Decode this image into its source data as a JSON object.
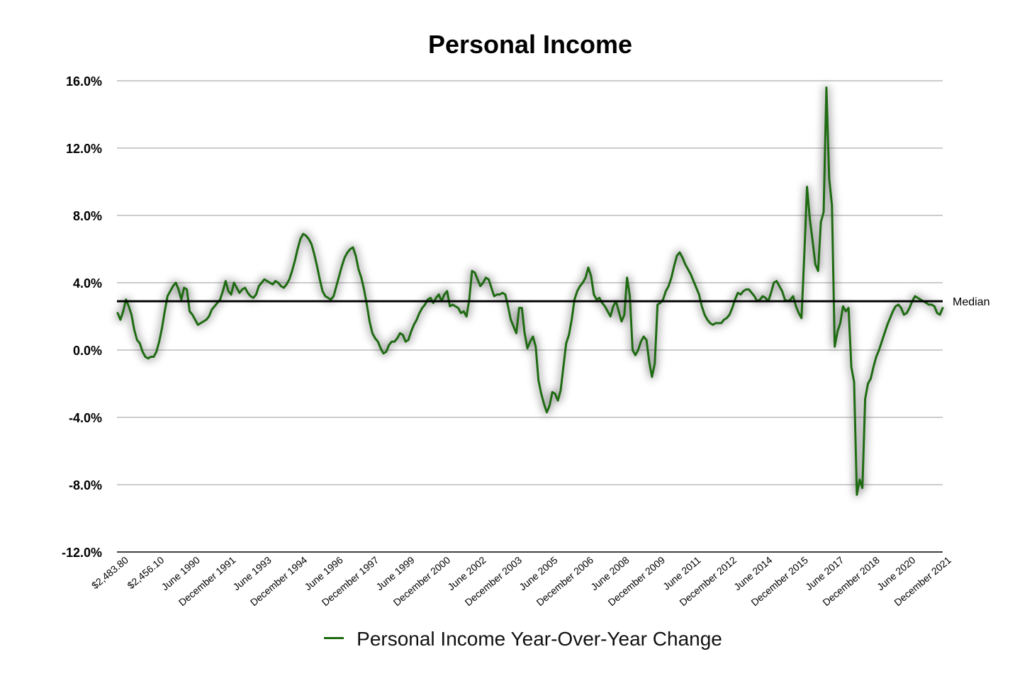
{
  "chart_data": {
    "type": "line",
    "title": "Personal Income",
    "xlabel": "",
    "ylabel": "",
    "ylim": [
      -12,
      16
    ],
    "y_ticks": [
      16,
      12,
      8,
      4,
      0,
      -4,
      -8,
      -12
    ],
    "y_tick_labels": [
      "16.0%",
      "12.0%",
      "8.0%",
      "4.0%",
      "0.0%",
      "-4.0%",
      "-8.0%",
      "-12.0%"
    ],
    "x_tick_labels": [
      "$2,483.80",
      "$2,456.10",
      "June 1990",
      "December 1991",
      "June 1993",
      "December 1994",
      "June 1996",
      "December 1997",
      "June 1999",
      "December 2000",
      "June 2002",
      "December 2003",
      "June 2005",
      "December 2006",
      "June 2008",
      "December 2009",
      "June 2011",
      "December 2012",
      "June 2014",
      "December 2015",
      "June 2017",
      "December 2018",
      "June 2020",
      "December 2021"
    ],
    "grid": true,
    "legend_position": "bottom",
    "reference_line": {
      "label": "Median",
      "value": 2.9
    },
    "series": [
      {
        "name": "Personal Income Year-Over-Year Change",
        "color": "#1e6b12",
        "values": [
          2.2,
          1.8,
          2.3,
          3.0,
          2.6,
          2.1,
          1.2,
          0.6,
          0.4,
          -0.1,
          -0.4,
          -0.5,
          -0.4,
          -0.4,
          -0.1,
          0.5,
          1.3,
          2.3,
          3.2,
          3.5,
          3.8,
          4.0,
          3.6,
          3.0,
          3.7,
          3.6,
          2.3,
          2.1,
          1.8,
          1.5,
          1.6,
          1.7,
          1.8,
          2.0,
          2.4,
          2.6,
          2.8,
          3.0,
          3.5,
          4.1,
          3.5,
          3.3,
          4.0,
          3.7,
          3.4,
          3.6,
          3.7,
          3.4,
          3.2,
          3.1,
          3.3,
          3.8,
          4.0,
          4.2,
          4.1,
          4.0,
          3.9,
          4.1,
          4.0,
          3.8,
          3.7,
          3.9,
          4.2,
          4.7,
          5.3,
          6.0,
          6.6,
          6.9,
          6.8,
          6.6,
          6.3,
          5.7,
          5.0,
          4.2,
          3.5,
          3.2,
          3.1,
          3.0,
          3.2,
          3.8,
          4.4,
          5.0,
          5.5,
          5.8,
          6.0,
          6.1,
          5.6,
          4.8,
          4.3,
          3.6,
          2.7,
          1.7,
          1.0,
          0.7,
          0.5,
          0.1,
          -0.2,
          -0.1,
          0.3,
          0.5,
          0.5,
          0.7,
          1.0,
          0.9,
          0.5,
          0.6,
          1.1,
          1.5,
          1.8,
          2.2,
          2.5,
          2.7,
          3.0,
          3.1,
          2.8,
          3.1,
          3.3,
          2.9,
          3.3,
          3.5,
          2.6,
          2.7,
          2.6,
          2.5,
          2.2,
          2.3,
          2.0,
          3.0,
          4.7,
          4.6,
          4.2,
          3.8,
          4.0,
          4.3,
          4.2,
          3.7,
          3.2,
          3.3,
          3.3,
          3.4,
          3.3,
          2.6,
          1.8,
          1.4,
          1.0,
          2.5,
          2.5,
          1.0,
          0.1,
          0.5,
          0.8,
          0.2,
          -1.8,
          -2.6,
          -3.2,
          -3.7,
          -3.3,
          -2.5,
          -2.6,
          -3.0,
          -2.4,
          -1.0,
          0.4,
          0.9,
          1.8,
          3.0,
          3.5,
          3.8,
          4.0,
          4.3,
          4.9,
          4.4,
          3.3,
          3.0,
          3.1,
          2.8,
          2.6,
          2.3,
          2.0,
          2.6,
          2.9,
          2.3,
          1.7,
          2.1,
          4.3,
          3.2,
          0.0,
          -0.3,
          0.0,
          0.5,
          0.8,
          0.6,
          -0.7,
          -1.6,
          -0.8,
          2.7,
          2.8,
          3.0,
          3.5,
          3.8,
          4.3,
          5.0,
          5.6,
          5.8,
          5.5,
          5.1,
          4.8,
          4.5,
          4.1,
          3.7,
          3.3,
          2.6,
          2.1,
          1.8,
          1.6,
          1.5,
          1.6,
          1.6,
          1.6,
          1.8,
          1.9,
          2.1,
          2.5,
          3.0,
          3.4,
          3.3,
          3.5,
          3.6,
          3.6,
          3.4,
          3.2,
          2.9,
          3.0,
          3.2,
          3.1,
          2.9,
          3.4,
          4.0,
          4.1,
          3.8,
          3.5,
          3.0,
          2.9,
          3.0,
          3.2,
          2.6,
          2.2,
          1.9,
          5.6,
          9.7,
          7.8,
          6.5,
          5.1,
          4.7,
          7.6,
          8.2,
          15.6,
          10.2,
          8.6,
          0.2,
          1.1,
          1.6,
          2.6,
          2.3,
          2.5,
          -1.0,
          -1.9,
          -8.6,
          -7.7,
          -8.2,
          -2.9,
          -2.0,
          -1.7,
          -1.0,
          -0.4,
          0.0,
          0.5,
          1.0,
          1.5,
          1.9,
          2.3,
          2.6,
          2.7,
          2.5,
          2.1,
          2.2,
          2.5,
          2.9,
          3.2,
          3.1,
          3.0,
          2.9,
          2.8,
          2.7,
          2.7,
          2.6,
          2.2,
          2.1,
          2.5
        ]
      }
    ]
  }
}
